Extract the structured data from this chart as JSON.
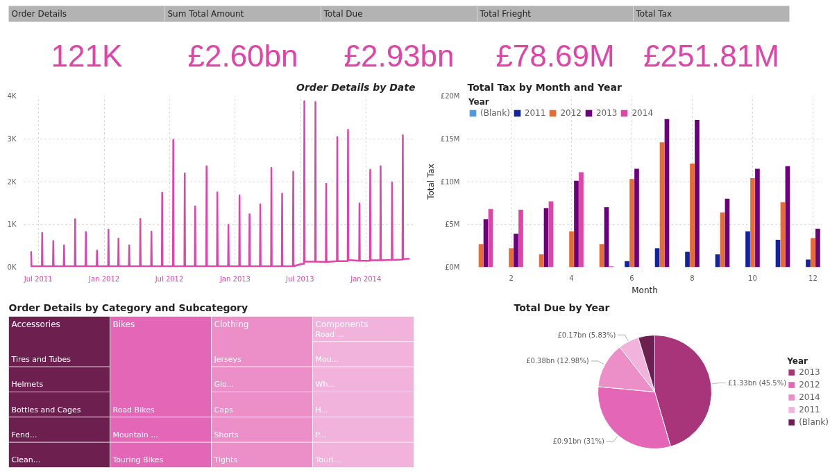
{
  "chart_data": [
    {
      "type": "other",
      "categories": [
        "Order Details",
        "Sum Total Amount",
        "Total Due",
        "Total Frieght",
        "Total Tax"
      ],
      "value_labels": [
        "121K",
        "£2.60bn",
        "£2.93bn",
        "£78.69M",
        "£251.81M"
      ],
      "color": "#e044a7"
    },
    {
      "type": "line",
      "title": "Order Details by Date",
      "color": "#e044a7",
      "grid": true,
      "xlim": [
        "2011-05-22",
        "2014-05-19"
      ],
      "ylim": [
        0,
        4
      ],
      "xticks": [
        {
          "value": "2011-07-01",
          "label": "Jul 2011"
        },
        {
          "value": "2012-01-01",
          "label": "Jan 2012"
        },
        {
          "value": "2012-07-01",
          "label": "Jul 2012"
        },
        {
          "value": "2013-01-01",
          "label": "Jan 2013"
        },
        {
          "value": "2013-07-01",
          "label": "Jul 2013"
        },
        {
          "value": "2014-01-01",
          "label": "Jan 2014"
        }
      ],
      "yticks": [
        {
          "value": 0,
          "label": "0K"
        },
        {
          "value": 1,
          "label": "1K"
        },
        {
          "value": 2,
          "label": "2K"
        },
        {
          "value": 3,
          "label": "3K"
        },
        {
          "value": 4,
          "label": "4K"
        }
      ],
      "x": [
        "2011-06-11",
        "2011-06-12",
        "2011-07-11",
        "2011-07-12",
        "2011-07-13",
        "2011-08-11",
        "2011-08-12",
        "2011-08-13",
        "2011-09-10",
        "2011-09-11",
        "2011-09-12",
        "2011-10-11",
        "2011-10-12",
        "2011-10-13",
        "2011-11-10",
        "2011-11-11",
        "2011-11-12",
        "2011-12-11",
        "2011-12-12",
        "2011-12-13",
        "2012-01-12",
        "2012-01-13",
        "2012-01-14",
        "2012-02-09",
        "2012-02-10",
        "2012-02-11",
        "2012-03-10",
        "2012-03-11",
        "2012-03-12",
        "2012-04-10",
        "2012-04-11",
        "2012-04-12",
        "2012-05-11",
        "2012-05-12",
        "2012-05-13",
        "2012-06-10",
        "2012-06-11",
        "2012-06-12",
        "2012-07-11",
        "2012-07-12",
        "2012-07-13",
        "2012-08-12",
        "2012-08-13",
        "2012-08-14",
        "2012-09-10",
        "2012-09-11",
        "2012-09-12",
        "2012-10-12",
        "2012-10-13",
        "2012-10-14",
        "2012-11-11",
        "2012-11-12",
        "2012-11-13",
        "2012-12-12",
        "2012-12-13",
        "2012-12-14",
        "2013-01-12",
        "2013-01-13",
        "2013-01-14",
        "2013-02-09",
        "2013-02-10",
        "2013-02-11",
        "2013-03-11",
        "2013-03-12",
        "2013-03-13",
        "2013-04-11",
        "2013-04-12",
        "2013-04-13",
        "2013-05-11",
        "2013-05-12",
        "2013-05-13",
        "2013-06-11",
        "2013-06-12",
        "2013-06-13",
        "2013-06-28",
        "2013-07-12",
        "2013-07-13",
        "2013-07-14",
        "2013-08-12",
        "2013-08-13",
        "2013-08-14",
        "2013-09-11",
        "2013-09-12",
        "2013-09-13",
        "2013-10-12",
        "2013-10-13",
        "2013-10-14",
        "2013-11-11",
        "2013-11-12",
        "2013-11-13",
        "2013-12-13",
        "2013-12-14",
        "2013-12-15",
        "2014-01-12",
        "2014-01-13",
        "2014-01-14",
        "2014-02-10",
        "2014-02-11",
        "2014-02-12",
        "2014-03-14",
        "2014-03-15",
        "2014-03-16",
        "2014-04-13",
        "2014-04-14",
        "2014-04-15",
        "2014-05-03"
      ],
      "values": [
        0.37,
        0.02,
        0.02,
        0.8,
        0.02,
        0.02,
        0.61,
        0.02,
        0.02,
        0.51,
        0.02,
        0.02,
        1.12,
        0.02,
        0.02,
        0.82,
        0.02,
        0.02,
        0.39,
        0.02,
        0.02,
        0.88,
        0.02,
        0.02,
        0.67,
        0.02,
        0.02,
        0.51,
        0.02,
        0.02,
        1.13,
        0.02,
        0.02,
        0.83,
        0.02,
        0.02,
        1.74,
        0.02,
        0.02,
        2.98,
        0.02,
        0.02,
        2.19,
        0.02,
        0.02,
        1.42,
        0.02,
        0.02,
        2.36,
        0.02,
        0.02,
        1.75,
        0.02,
        0.02,
        0.99,
        0.02,
        0.02,
        1.68,
        0.02,
        0.02,
        1.24,
        0.02,
        0.02,
        1.47,
        0.02,
        0.02,
        2.32,
        0.02,
        0.02,
        1.72,
        0.02,
        0.02,
        2.23,
        0.02,
        0.06,
        0.08,
        3.88,
        0.13,
        0.13,
        3.86,
        0.13,
        0.12,
        1.95,
        0.12,
        0.14,
        3.04,
        0.14,
        0.14,
        3.21,
        0.17,
        0.15,
        1.49,
        0.15,
        0.15,
        2.28,
        0.16,
        0.16,
        2.36,
        0.16,
        0.17,
        1.98,
        0.17,
        0.18,
        3.08,
        0.19,
        0.2
      ]
    },
    {
      "type": "bar",
      "title": "Total Tax by Month and Year",
      "xlabel": "Month",
      "ylabel": "Total Tax",
      "legend_title": "Year",
      "legend": "top left",
      "grid": true,
      "x": [
        1,
        2,
        3,
        4,
        5,
        6,
        7,
        8,
        9,
        10,
        11,
        12
      ],
      "xlim": [
        0.55,
        12.3
      ],
      "ylim": [
        0,
        20
      ],
      "xticks": [
        2,
        4,
        6,
        8,
        10,
        12
      ],
      "yticks": [
        {
          "value": 0,
          "label": "£0M"
        },
        {
          "value": 5,
          "label": "£5M"
        },
        {
          "value": 10,
          "label": "£10M"
        },
        {
          "value": 15,
          "label": "£15M"
        },
        {
          "value": 20,
          "label": "£20M"
        }
      ],
      "series": [
        {
          "name": "(Blank)",
          "color": "#4a9be0",
          "values": [
            null,
            null,
            null,
            null,
            null,
            null,
            null,
            null,
            null,
            null,
            null,
            null
          ]
        },
        {
          "name": "2011",
          "color": "#12239e",
          "values": [
            null,
            null,
            null,
            null,
            null,
            0.7,
            2.2,
            1.8,
            1.5,
            4.2,
            3.2,
            0.9
          ]
        },
        {
          "name": "2012",
          "color": "#e66c37",
          "values": [
            2.7,
            2.2,
            1.5,
            4.2,
            2.7,
            10.3,
            14.6,
            12.1,
            6.4,
            10.4,
            7.6,
            3.4
          ]
        },
        {
          "name": "2013",
          "color": "#6b007b",
          "values": [
            5.6,
            3.9,
            6.9,
            10.1,
            7.0,
            11.5,
            17.3,
            17.2,
            8.0,
            11.5,
            11.8,
            4.5
          ]
        },
        {
          "name": "2014",
          "color": "#e044a7",
          "values": [
            6.8,
            6.7,
            7.7,
            11.1,
            0.1,
            null,
            null,
            null,
            null,
            null,
            null,
            null
          ]
        }
      ]
    },
    {
      "type": "other",
      "title": "Order Details by Category and Subcategory",
      "annotations": [
        "Accessories",
        "Bikes",
        "Clothing",
        "Components"
      ],
      "categories": [
        "Tires and Tubes",
        "Helmets",
        "Bottles and Cages",
        "Fend...",
        "Clean...",
        "Road Bikes",
        "Mountain ...",
        "Touring Bikes",
        "Jerseys",
        "Glo...",
        "Caps",
        "Shorts",
        "Tights",
        "Road ...",
        "Mou...",
        "Wh...",
        "H...",
        "P...",
        "Touri..."
      ],
      "colors": [
        "#6d1f4f",
        "#6d1f4f",
        "#6d1f4f",
        "#6d1f4f",
        "#6d1f4f",
        "#e466b6",
        "#e466b6",
        "#e466b6",
        "#ec8ec8",
        "#ec8ec8",
        "#ec8ec8",
        "#ec8ec8",
        "#ec8ec8",
        "#f1b2dc",
        "#f1b2dc",
        "#f1b2dc",
        "#f1b2dc",
        "#f1b2dc",
        "#f1b2dc"
      ]
    },
    {
      "type": "pie",
      "title": "Total Due by Year",
      "legend_title": "Year",
      "legend": "right",
      "categories": [
        "2013",
        "2012",
        "2014",
        "2011",
        "(Blank)"
      ],
      "values": [
        45.5,
        31,
        12.98,
        5.83,
        4.69
      ],
      "colors": [
        "#a8347a",
        "#e466b6",
        "#ec8ec8",
        "#f1b2dc",
        "#6d1f4f"
      ],
      "value_labels": [
        "£1.33bn (45.5%)",
        "£0.91bn (31%)",
        "£0.38bn (12.98%)",
        "£0.17bn (5.83%)",
        null
      ]
    }
  ]
}
